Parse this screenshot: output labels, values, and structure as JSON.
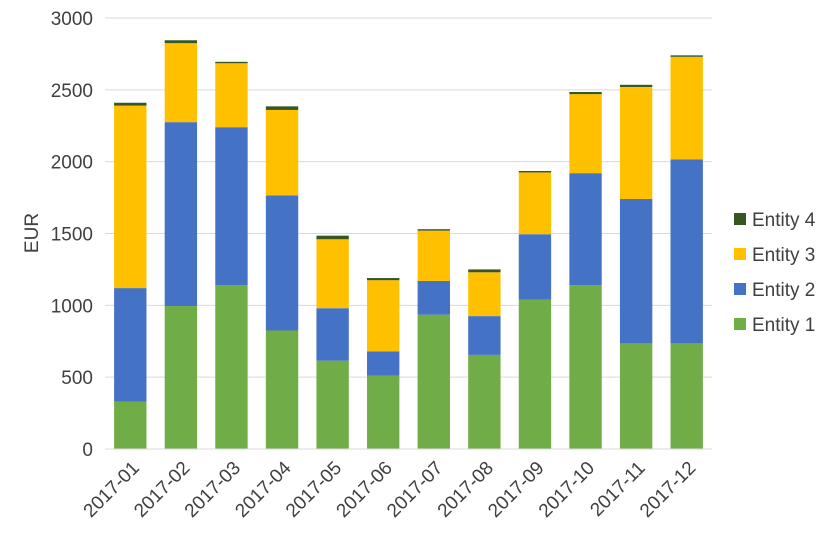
{
  "chart_data": {
    "type": "bar",
    "stacked": true,
    "title": "",
    "xlabel": "",
    "ylabel": "EUR",
    "ylim": [
      0,
      3000
    ],
    "y_ticks": [
      0,
      500,
      1000,
      1500,
      2000,
      2500,
      3000
    ],
    "grid": true,
    "legend_position": "right",
    "categories": [
      "2017-01",
      "2017-02",
      "2017-03",
      "2017-04",
      "2017-05",
      "2017-06",
      "2017-07",
      "2017-08",
      "2017-09",
      "2017-10",
      "2017-11",
      "2017-12"
    ],
    "series": [
      {
        "name": "Entity 1",
        "color": "#70AD47",
        "values": [
          330,
          995,
          1140,
          825,
          615,
          510,
          935,
          655,
          1040,
          1140,
          735,
          735
        ]
      },
      {
        "name": "Entity 2",
        "color": "#4472C4",
        "values": [
          790,
          1280,
          1100,
          940,
          365,
          170,
          235,
          270,
          455,
          780,
          1005,
          1280
        ]
      },
      {
        "name": "Entity 3",
        "color": "#FFC000",
        "values": [
          1270,
          550,
          445,
          595,
          480,
          495,
          350,
          305,
          430,
          550,
          780,
          715
        ]
      },
      {
        "name": "Entity 4",
        "color": "#375623",
        "values": [
          20,
          20,
          10,
          25,
          25,
          15,
          10,
          20,
          10,
          15,
          15,
          10
        ]
      }
    ]
  }
}
